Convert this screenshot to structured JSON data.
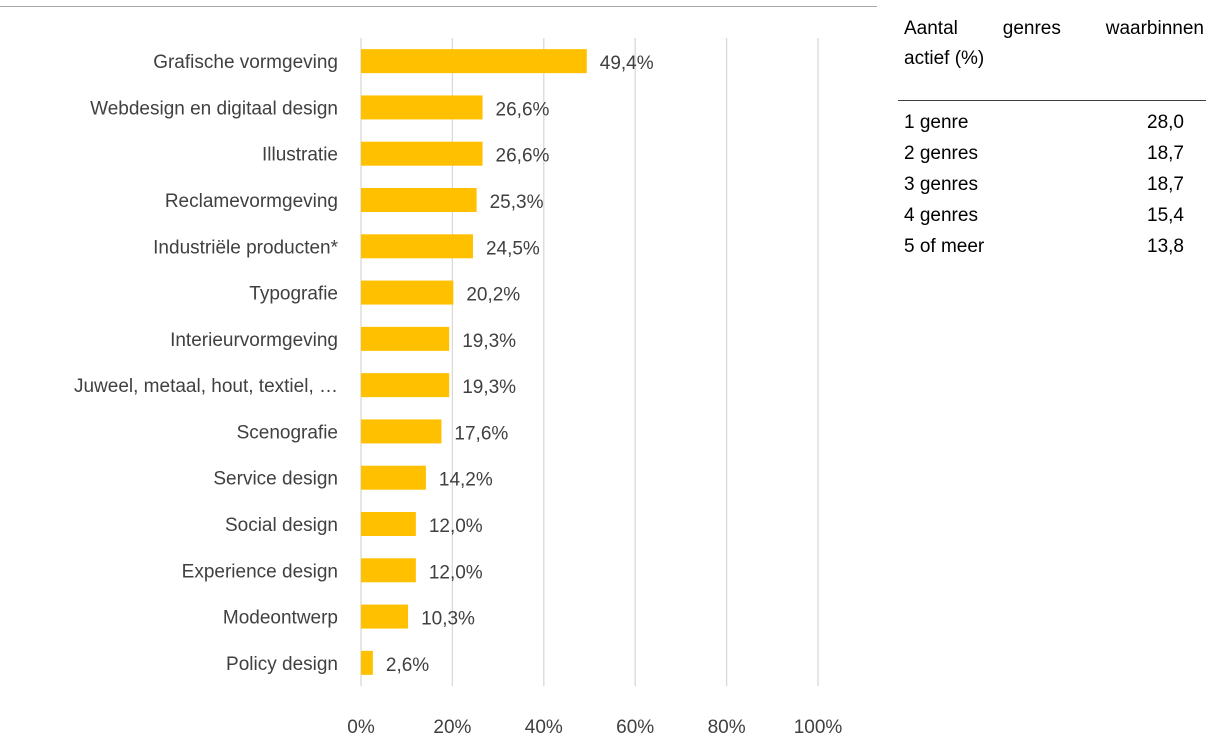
{
  "chart_data": {
    "type": "bar",
    "orientation": "horizontal",
    "categories": [
      "Grafische vormgeving",
      "Webdesign en digitaal design",
      "Illustratie",
      "Reclamevormgeving",
      "Industriële producten*",
      "Typografie",
      "Interieurvormgeving",
      "Juweel, metaal, hout, textiel, …",
      "Scenografie",
      "Service design",
      "Social design",
      "Experience design",
      "Modeontwerp",
      "Policy design"
    ],
    "values": [
      49.4,
      26.6,
      26.6,
      25.3,
      24.5,
      20.2,
      19.3,
      19.3,
      17.6,
      14.2,
      12.0,
      12.0,
      10.3,
      2.6
    ],
    "value_labels": [
      "49,4%",
      "26,6%",
      "26,6%",
      "25,3%",
      "24,5%",
      "20,2%",
      "19,3%",
      "19,3%",
      "17,6%",
      "14,2%",
      "12,0%",
      "12,0%",
      "10,3%",
      "2,6%"
    ],
    "xlim": [
      0,
      100
    ],
    "x_ticks": [
      "0%",
      "20%",
      "40%",
      "60%",
      "80%",
      "100%"
    ],
    "bar_color": "#ffc000",
    "grid": true,
    "title": "",
    "xlabel": "",
    "ylabel": ""
  },
  "side_table": {
    "header_words": [
      "Aantal",
      "genres",
      "waarbinnen"
    ],
    "header_line2": "actief (%)",
    "rows": [
      {
        "label": "1 genre",
        "value": "28,0"
      },
      {
        "label": "2 genres",
        "value": "18,7"
      },
      {
        "label": "3 genres",
        "value": "18,7"
      },
      {
        "label": "4 genres",
        "value": "15,4"
      },
      {
        "label": "5 of meer",
        "value": "13,8"
      }
    ]
  }
}
